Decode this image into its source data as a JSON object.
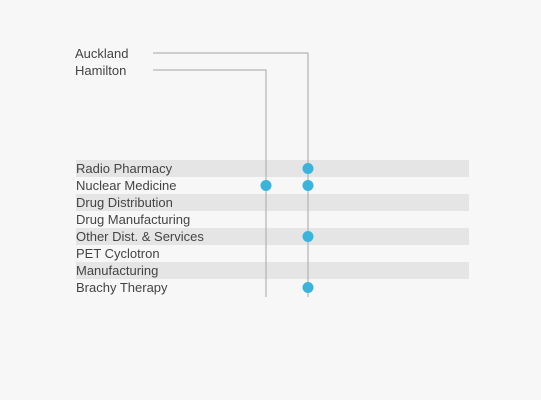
{
  "chart_data": {
    "type": "dot-matrix",
    "title": "",
    "columns": [
      "Auckland",
      "Hamilton"
    ],
    "rows": [
      "Radio Pharmacy",
      "Nuclear Medicine",
      "Drug Distribution",
      "Drug Manufacturing",
      "Other Dist. & Services",
      "PET Cyclotron",
      "Manufacturing",
      "Brachy Therapy"
    ],
    "values": {
      "Auckland": [
        1,
        1,
        0,
        0,
        1,
        0,
        0,
        1
      ],
      "Hamilton": [
        0,
        1,
        0,
        0,
        0,
        0,
        0,
        0
      ]
    },
    "colors": {
      "dot": "#3bb4dc",
      "band": "#e5e5e5",
      "line": "#a6a6a6",
      "text": "#444444",
      "background": "#f7f7f7"
    }
  }
}
